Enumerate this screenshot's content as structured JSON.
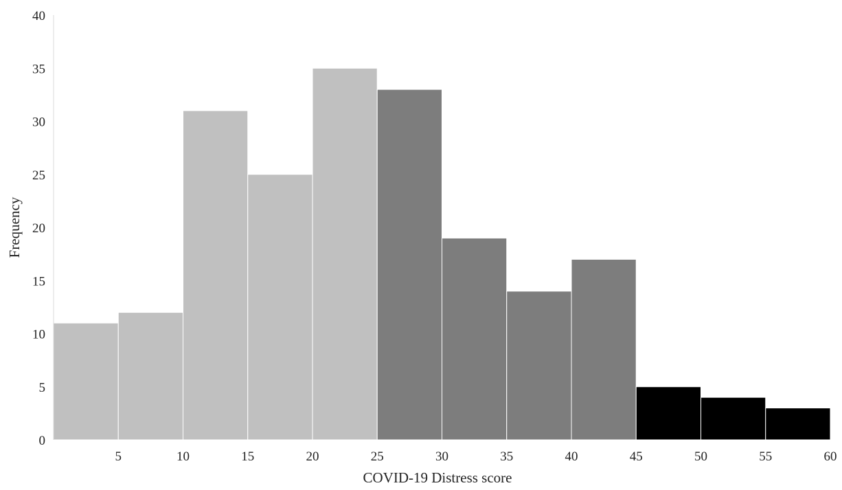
{
  "chart_data": {
    "type": "bar",
    "subtype": "histogram",
    "title": "",
    "xlabel": "COVID-19 Distress score",
    "ylabel": "Frequency",
    "xlim": [
      0,
      60
    ],
    "ylim": [
      0,
      40
    ],
    "x_ticks": [
      "5",
      "10",
      "15",
      "20",
      "25",
      "30",
      "35",
      "40",
      "45",
      "50",
      "55",
      "60"
    ],
    "y_ticks": [
      "0",
      "5",
      "10",
      "15",
      "20",
      "25",
      "30",
      "35",
      "40"
    ],
    "grid": false,
    "legend": "none",
    "bins": [
      {
        "start": 0,
        "end": 5,
        "value": 11,
        "color": "#c0c0c0"
      },
      {
        "start": 5,
        "end": 10,
        "value": 12,
        "color": "#c0c0c0"
      },
      {
        "start": 10,
        "end": 15,
        "value": 31,
        "color": "#c0c0c0"
      },
      {
        "start": 15,
        "end": 20,
        "value": 25,
        "color": "#c0c0c0"
      },
      {
        "start": 20,
        "end": 25,
        "value": 35,
        "color": "#c0c0c0"
      },
      {
        "start": 25,
        "end": 30,
        "value": 33,
        "color": "#7d7d7d"
      },
      {
        "start": 30,
        "end": 35,
        "value": 19,
        "color": "#7d7d7d"
      },
      {
        "start": 35,
        "end": 40,
        "value": 14,
        "color": "#7d7d7d"
      },
      {
        "start": 40,
        "end": 45,
        "value": 17,
        "color": "#7d7d7d"
      },
      {
        "start": 45,
        "end": 50,
        "value": 5,
        "color": "#000000"
      },
      {
        "start": 50,
        "end": 55,
        "value": 4,
        "color": "#000000"
      },
      {
        "start": 55,
        "end": 60,
        "value": 3,
        "color": "#000000"
      }
    ]
  }
}
